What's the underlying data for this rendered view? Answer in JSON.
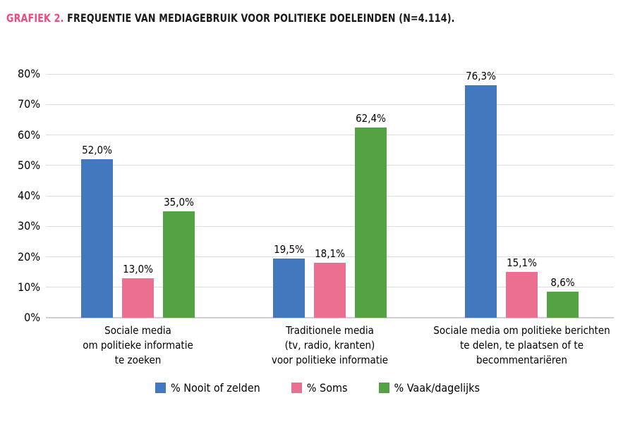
{
  "title": {
    "prefix": "GRAFIEK 2.",
    "text": " FREQUENTIE VAN MEDIAGEBRUIK VOOR POLITIEKE DOELEINDEN (N=4.114)."
  },
  "colors": {
    "title_prefix": "#F4497F",
    "title_text": "#1a1a1a",
    "gridline": "#dcdcdc",
    "baseline": "#cfcfcf",
    "label_text": "#000000",
    "series_blue": "#4278BE",
    "series_pink": "#EC6E91",
    "series_green": "#55A244"
  },
  "chart_data": {
    "type": "bar",
    "title": "GRAFIEK 2. FREQUENTIE VAN MEDIAGEBRUIK VOOR POLITIEKE DOELEINDEN (N=4.114).",
    "categories": [
      "Sociale media\nom politieke informatie\nte zoeken",
      "Traditionele media\n(tv, radio, kranten)\nvoor politieke informatie",
      "Sociale media om politieke berichten\nte delen, te plaatsen of te\nbecommentariëren"
    ],
    "series": [
      {
        "name": "% Nooit of zelden",
        "color": "#4278BE",
        "values": [
          52.0,
          19.5,
          76.3
        ],
        "value_labels": [
          "52,0%",
          "19,5%",
          "76,3%"
        ]
      },
      {
        "name": "% Soms",
        "color": "#EC6E91",
        "values": [
          13.0,
          18.1,
          15.1
        ],
        "value_labels": [
          "13,0%",
          "18,1%",
          "15,1%"
        ]
      },
      {
        "name": "% Vaak/dagelijks",
        "color": "#55A244",
        "values": [
          35.0,
          62.4,
          8.6
        ],
        "value_labels": [
          "35,0%",
          "62,4%",
          "8,6%"
        ]
      }
    ],
    "xlabel": "",
    "ylabel": "",
    "y_axis": {
      "ticks": [
        0,
        10,
        20,
        30,
        40,
        50,
        60,
        70,
        80
      ],
      "tick_labels": [
        "0%",
        "10%",
        "20%",
        "30%",
        "40%",
        "50%",
        "60%",
        "70%",
        "80%"
      ],
      "ylim": [
        0,
        80
      ]
    },
    "grid": true,
    "legend_position": "bottom"
  }
}
